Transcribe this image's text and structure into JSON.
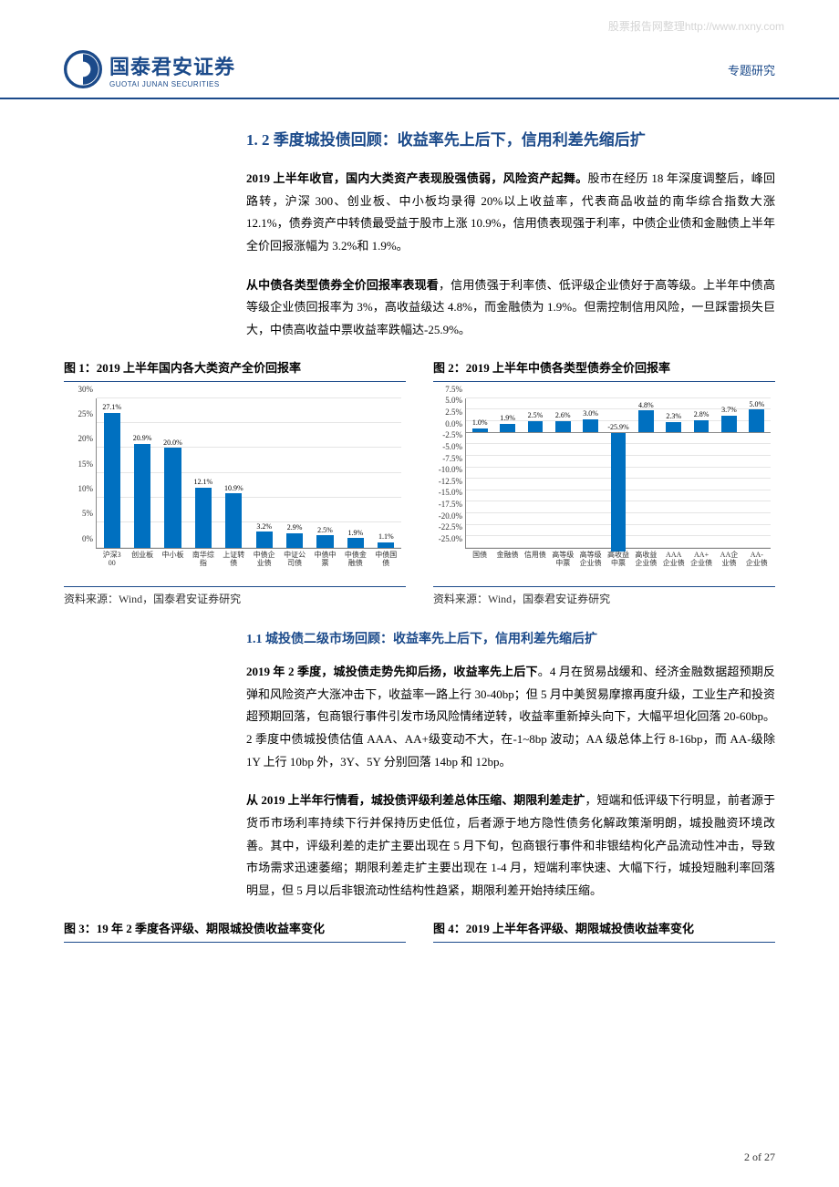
{
  "watermark": "股票报告网整理http://www.nxny.com",
  "header": {
    "logo_cn": "国泰君安证券",
    "logo_en": "GUOTAI JUNAN SECURITIES",
    "right_label": "专题研究"
  },
  "section1_title": "1. 2 季度城投债回顾：收益率先上后下，信用利差先缩后扩",
  "para1_lead": "2019 上半年收官，国内大类资产表现股强债弱，风险资产起舞。",
  "para1_rest": "股市在经历 18 年深度调整后，峰回路转，沪深 300、创业板、中小板均录得 20%以上收益率，代表商品收益的南华综合指数大涨 12.1%，债券资产中转债最受益于股市上涨 10.9%，信用债表现强于利率，中债企业债和金融债上半年全价回报涨幅为 3.2%和 1.9%。",
  "para2_lead": "从中债各类型债券全价回报率表现看",
  "para2_rest": "，信用债强于利率债、低评级企业债好于高等级。上半年中债高等级企业债回报率为 3%，高收益级达 4.8%，而金融债为 1.9%。但需控制信用风险，一旦踩雷损失巨大，中债高收益中票收益率跌幅达-25.9%。",
  "fig1": {
    "title": "图 1：2019 上半年国内各大类资产全价回报率",
    "source": "资料来源：Wind，国泰君安证券研究",
    "categories": [
      "沪深300",
      "创业板",
      "中小板",
      "南华综指",
      "上证转债",
      "中债企业债",
      "中证公司债",
      "中债中票",
      "中债金融债",
      "中债国债"
    ],
    "values": [
      27.1,
      20.9,
      20.0,
      12.1,
      10.9,
      3.2,
      2.9,
      2.5,
      1.9,
      1.1
    ],
    "ymin": 0,
    "ymax": 30,
    "ystep": 5,
    "bar_color": "#0070c0"
  },
  "fig2": {
    "title": "图 2：2019 上半年中债各类型债券全价回报率",
    "source": "资料来源：Wind，国泰君安证券研究",
    "categories": [
      "国债",
      "金融债",
      "信用债",
      "高等级中票",
      "高等级企业债",
      "高收益中票",
      "高收益企业债",
      "AAA企业债",
      "AA+企业债",
      "AA企业债",
      "AA-企业债"
    ],
    "values": [
      1.0,
      1.9,
      2.5,
      2.6,
      3.0,
      -25.9,
      4.8,
      2.3,
      2.8,
      3.7,
      5.0
    ],
    "ymin": -25,
    "ymax": 7.5,
    "ystep": 2.5,
    "bar_color": "#0070c0"
  },
  "sub1_title": "1.1 城投债二级市场回顾：收益率先上后下，信用利差先缩后扩",
  "para3_lead": "2019 年 2 季度，城投债走势先抑后扬，收益率先上后下",
  "para3_rest": "。4 月在贸易战缓和、经济金融数据超预期反弹和风险资产大涨冲击下，收益率一路上行 30-40bp；但 5 月中美贸易摩擦再度升级，工业生产和投资超预期回落，包商银行事件引发市场风险情绪逆转，收益率重新掉头向下，大幅平坦化回落 20-60bp。2 季度中债城投债估值 AAA、AA+级变动不大，在-1~8bp 波动；AA 级总体上行 8-16bp，而 AA-级除 1Y 上行 10bp 外，3Y、5Y 分别回落 14bp 和 12bp。",
  "para4_lead": "从 2019 上半年行情看，城投债评级利差总体压缩、期限利差走扩",
  "para4_rest": "，短端和低评级下行明显，前者源于货币市场利率持续下行并保持历史低位，后者源于地方隐性债务化解政策渐明朗，城投融资环境改善。其中，评级利差的走扩主要出现在 5 月下旬，包商银行事件和非银结构化产品流动性冲击，导致市场需求迅速萎缩；期限利差走扩主要出现在 1-4 月，短端利率快速、大幅下行，城投短融利率回落明显，但 5 月以后非银流动性结构性趋紧，期限利差开始持续压缩。",
  "fig3_title": "图 3：19 年 2 季度各评级、期限城投债收益率变化",
  "fig4_title": "图 4：2019 上半年各评级、期限城投债收益率变化",
  "footer": "2 of 27"
}
